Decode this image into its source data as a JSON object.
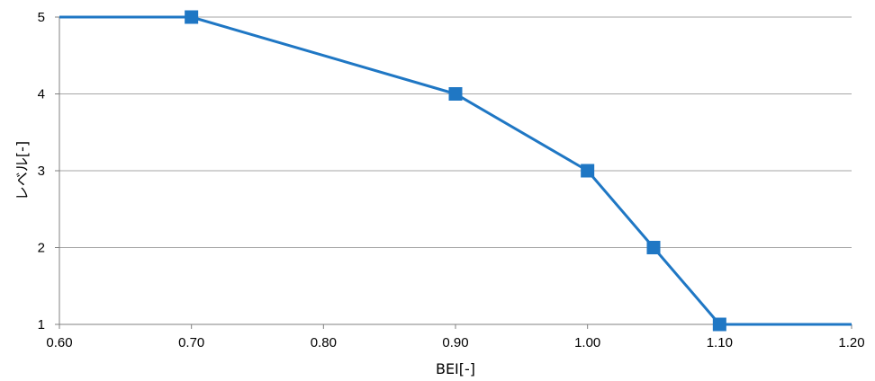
{
  "chart_data": {
    "type": "line",
    "title": "",
    "xlabel": "BEI[-]",
    "ylabel": "レベル[-]",
    "xlim": [
      0.6,
      1.2
    ],
    "ylim": [
      1,
      5
    ],
    "xticks": [
      "0.60",
      "0.70",
      "0.80",
      "0.90",
      "1.00",
      "1.10",
      "1.20"
    ],
    "yticks": [
      "1",
      "2",
      "3",
      "4",
      "5"
    ],
    "grid": "horizontal",
    "legend": "none",
    "series": [
      {
        "color": "#1f77c4",
        "marker": "square",
        "points": [
          {
            "x": 0.6,
            "y": 5,
            "marker": false
          },
          {
            "x": 0.7,
            "y": 5,
            "marker": true
          },
          {
            "x": 0.9,
            "y": 4,
            "marker": true
          },
          {
            "x": 1.0,
            "y": 3,
            "marker": true
          },
          {
            "x": 1.05,
            "y": 2,
            "marker": true
          },
          {
            "x": 1.1,
            "y": 1,
            "marker": true
          },
          {
            "x": 1.2,
            "y": 1,
            "marker": false
          }
        ]
      }
    ]
  },
  "colors": {
    "series": "#1f77c4",
    "grid": "#a6a6a6",
    "axis": "#808080"
  }
}
